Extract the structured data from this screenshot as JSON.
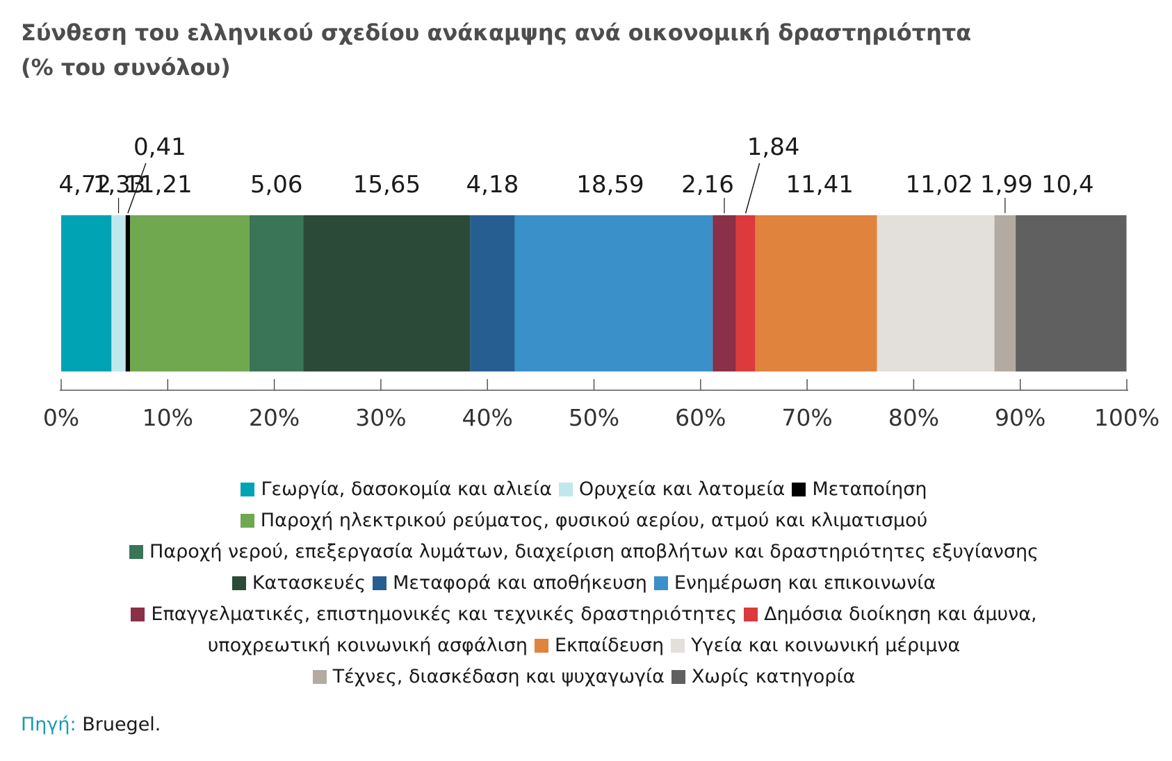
{
  "title": {
    "line1": "Σύνθεση του ελληνικού σχεδίου ανάκαμψης ανά οικονομική δραστηριότητα",
    "line2": "(% του συνόλου)"
  },
  "chart_data": {
    "type": "bar",
    "orientation": "horizontal-stacked-100",
    "xlim": [
      0,
      100
    ],
    "x_ticks": [
      "0%",
      "10%",
      "20%",
      "30%",
      "40%",
      "50%",
      "60%",
      "70%",
      "80%",
      "90%",
      "100%"
    ],
    "grid": false,
    "legend_position": "bottom",
    "series": [
      {
        "name": "Γεωργία, δασοκομία και αλιεία",
        "value": 4.72,
        "label": "4,72",
        "color": "#00a3b4"
      },
      {
        "name": "Ορυχεία και λατομεία",
        "value": 1.33,
        "label": "1,33",
        "color": "#bfe8ec"
      },
      {
        "name": "Μεταποίηση",
        "value": 0.41,
        "label": "0,41",
        "color": "#000000"
      },
      {
        "name": "Παροχή ηλεκτρικού ρεύματος, φυσικού αερίου, ατμού και κλιματισμού",
        "value": 11.21,
        "label": "11,21",
        "color": "#6fa84f"
      },
      {
        "name": "Παροχή νερού, επεξεργασία λυμάτων, διαχείριση αποβλήτων και δραστηριότητες εξυγίανσης",
        "value": 5.06,
        "label": "5,06",
        "color": "#3a7558"
      },
      {
        "name": "Κατασκευές",
        "value": 15.65,
        "label": "15,65",
        "color": "#2b4a37"
      },
      {
        "name": "Μεταφορά και αποθήκευση",
        "value": 4.18,
        "label": "4,18",
        "color": "#275e91"
      },
      {
        "name": "Ενημέρωση και επικοινωνία",
        "value": 18.59,
        "label": "18,59",
        "color": "#3a90c8"
      },
      {
        "name": "Επαγγελματικές, επιστημονικές και τεχνικές δραστηριότητες",
        "value": 2.16,
        "label": "2,16",
        "color": "#8a3047"
      },
      {
        "name": "Δημόσια διοίκηση και άμυνα, υποχρεωτική κοινωνική ασφάλιση",
        "value": 1.84,
        "label": "1,84",
        "color": "#dc3a3c"
      },
      {
        "name": "Εκπαίδευση",
        "value": 11.41,
        "label": "11,41",
        "color": "#e0833c"
      },
      {
        "name": "Υγεία και κοινωνική μέριμνα",
        "value": 11.02,
        "label": "11,02",
        "color": "#e3dfdb"
      },
      {
        "name": "Τέχνες, διασκέδαση και ψυχαγωγία",
        "value": 1.99,
        "label": "1,99",
        "color": "#b3aba1"
      },
      {
        "name": "Χωρίς κατηγορία",
        "value": 10.4,
        "label": "10,4",
        "color": "#606060"
      }
    ]
  },
  "legend": {
    "rows": [
      [
        {
          "text": "Γεωργία, δασοκομία και αλιεία",
          "color": "#00a3b4"
        },
        {
          "text": "Ορυχεία και λατομεία",
          "color": "#bfe8ec"
        },
        {
          "text": "Μεταποίηση",
          "color": "#000000"
        }
      ],
      [
        {
          "text": "Παροχή ηλεκτρικού ρεύματος, φυσικού αερίου, ατμού και κλιματισμού",
          "color": "#6fa84f"
        }
      ],
      [
        {
          "text": "Παροχή νερού, επεξεργασία λυμάτων, διαχείριση αποβλήτων και δραστηριότητες εξυγίανσης",
          "color": "#3a7558"
        }
      ],
      [
        {
          "text": "Κατασκευές",
          "color": "#2b4a37"
        },
        {
          "text": "Μεταφορά και αποθήκευση",
          "color": "#275e91"
        },
        {
          "text": "Ενημέρωση και επικοινωνία",
          "color": "#3a90c8"
        }
      ],
      [
        {
          "text": "Επαγγελματικές, επιστημονικές και τεχνικές δραστηριότητες",
          "color": "#8a3047"
        },
        {
          "text": "Δημόσια διοίκηση και άμυνα,",
          "color": "#dc3a3c"
        }
      ],
      [
        {
          "text": "υποχρεωτική κοινωνική ασφάλιση",
          "color": null
        },
        {
          "text": "Εκπαίδευση",
          "color": "#e0833c"
        },
        {
          "text": "Υγεία και κοινωνική μέριμνα",
          "color": "#e3dfdb"
        }
      ],
      [
        {
          "text": "Τέχνες, διασκέδαση και ψυχαγωγία",
          "color": "#b3aba1"
        },
        {
          "text": "Χωρίς κατηγορία",
          "color": "#606060"
        }
      ]
    ]
  },
  "source": {
    "label": "Πηγή:",
    "value": "Bruegel."
  }
}
